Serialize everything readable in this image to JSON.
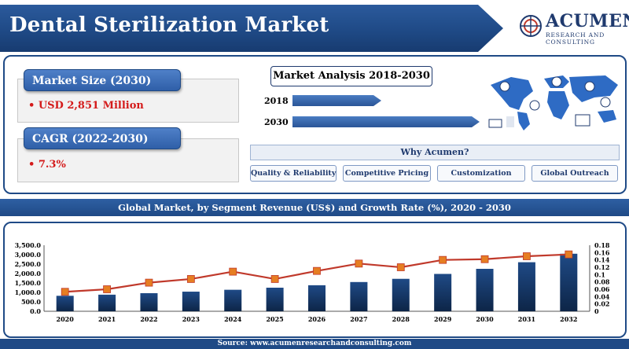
{
  "header": {
    "title": "Dental Sterilization Market",
    "logo_name": "ACUMEN",
    "logo_sub": "RESEARCH AND CONSULTING"
  },
  "stats": [
    {
      "label": "Market Size (2030)",
      "value": "• USD 2,851 Million"
    },
    {
      "label": "CAGR (2022-2030)",
      "value": "• 7.3%"
    }
  ],
  "analysis": {
    "title": "Market Analysis 2018-2030",
    "rows": [
      {
        "year": "2018",
        "value_share": 0.45
      },
      {
        "year": "2030",
        "value_share": 0.95
      }
    ]
  },
  "why": {
    "title": "Why Acumen?",
    "items": [
      "Quality & Reliability",
      "Competitive Pricing",
      "Customization",
      "Global Outreach"
    ]
  },
  "segment_title": "Global Market, by Segment Revenue (US$) and Growth Rate (%), 2020 - 2030",
  "source": "Source: www.acumenresearchandconsulting.com",
  "colors": {
    "bar_top": "#1f4a86",
    "bar_bottom": "#0d2547",
    "line": "#c0392b",
    "marker": "#e67e22",
    "accent": "#1f4a86"
  },
  "chart_data": {
    "type": "bar",
    "categories": [
      "2020",
      "2021",
      "2022",
      "2023",
      "2024",
      "2025",
      "2026",
      "2027",
      "2028",
      "2029",
      "2030",
      "2031",
      "2032"
    ],
    "series": [
      {
        "axis": "left",
        "type": "bar",
        "values": [
          820,
          880,
          960,
          1040,
          1140,
          1250,
          1380,
          1550,
          1720,
          1980,
          2250,
          2600,
          3050
        ]
      },
      {
        "axis": "right",
        "type": "line",
        "values": [
          0.053,
          0.06,
          0.078,
          0.088,
          0.108,
          0.088,
          0.11,
          0.13,
          0.12,
          0.14,
          0.142,
          0.15,
          0.155
        ]
      }
    ],
    "y_left": {
      "range": [
        0,
        3500
      ],
      "ticks": [
        "0.0",
        "500.0",
        "1,000.0",
        "1,500.0",
        "2,000.0",
        "2,500.0",
        "3,000.0",
        "3,500.0"
      ]
    },
    "y_right": {
      "range": [
        0,
        0.18
      ],
      "ticks": [
        "0",
        "0.02",
        "0.04",
        "0.06",
        "0.08",
        "0.1",
        "0.12",
        "0.14",
        "0.16",
        "0.18"
      ]
    },
    "grid": false,
    "legend": "none"
  }
}
